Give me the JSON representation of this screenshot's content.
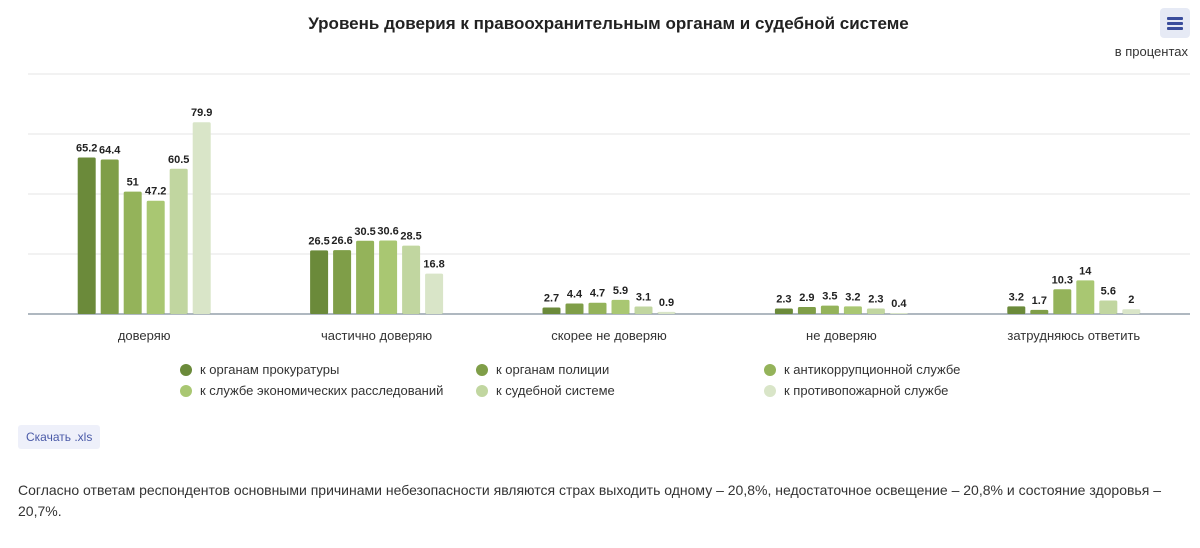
{
  "chart_data": {
    "type": "bar",
    "title": "Уровень доверия к правоохранительным органам и судебной системе",
    "unit_label": "в процентах",
    "categories": [
      "доверяю",
      "частично доверяю",
      "скорее не доверяю",
      "не доверяю",
      "затрудняюсь ответить"
    ],
    "series": [
      {
        "name": "к органам прокуратуры",
        "color": "#6b8a3a",
        "values": [
          65.2,
          26.5,
          2.7,
          2.3,
          3.2
        ]
      },
      {
        "name": "к органам полиции",
        "color": "#7f9e48",
        "values": [
          64.4,
          26.6,
          4.4,
          2.9,
          1.7
        ]
      },
      {
        "name": "к антикоррупционной службе",
        "color": "#94b35a",
        "values": [
          51,
          30.5,
          4.7,
          3.5,
          10.3
        ]
      },
      {
        "name": "к службе экономических расследований",
        "color": "#a9c772",
        "values": [
          47.2,
          30.6,
          5.9,
          3.2,
          14
        ]
      },
      {
        "name": "к судебной системе",
        "color": "#c1d6a0",
        "values": [
          60.5,
          28.5,
          3.1,
          2.3,
          5.6
        ]
      },
      {
        "name": "к противопожарной службе",
        "color": "#d9e5c8",
        "values": [
          79.9,
          16.8,
          0.9,
          0.4,
          2
        ]
      }
    ],
    "ylim": [
      0,
      100
    ],
    "grid": true,
    "legend_position": "bottom"
  },
  "download_label": "Скачать .xls",
  "paragraph": "Согласно ответам респондентов основными причинами небезопасности являются страх выходить одному – 20,8%, недостаточное освещение – 20,8% и состояние здоровья – 20,7%."
}
